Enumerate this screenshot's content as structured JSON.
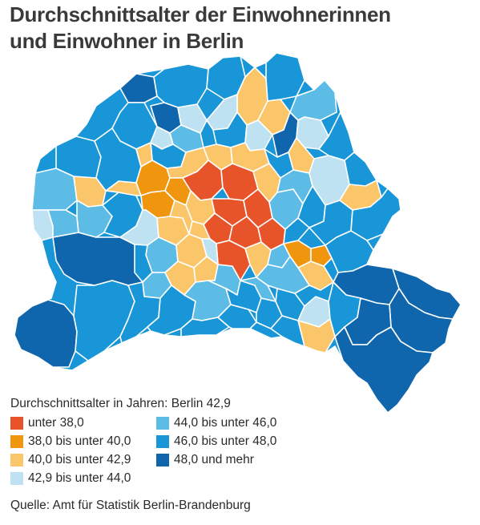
{
  "title_line1": "Durchschnittsalter der Einwohnerinnen",
  "title_line2": "und Einwohner in Berlin",
  "legend": {
    "heading": "Durchschnittsalter in Jahren: Berlin 42,9",
    "classes": [
      {
        "label": "unter 38,0",
        "color": "#e8542a"
      },
      {
        "label": "38,0 bis unter 40,0",
        "color": "#f0960e"
      },
      {
        "label": "40,0 bis unter 42,9",
        "color": "#fbc66a"
      },
      {
        "label": "42,9 bis unter 44,0",
        "color": "#bfe2f3"
      },
      {
        "label": "44,0 bis unter 46,0",
        "color": "#5cbce6"
      },
      {
        "label": "46,0 bis unter 48,0",
        "color": "#1996d8"
      },
      {
        "label": "48,0 und mehr",
        "color": "#1066ad"
      }
    ]
  },
  "source": "Quelle: Amt für Statistik Berlin-Brandenburg",
  "colors": {
    "border": "#ffffff",
    "background": "#ffffff"
  }
}
